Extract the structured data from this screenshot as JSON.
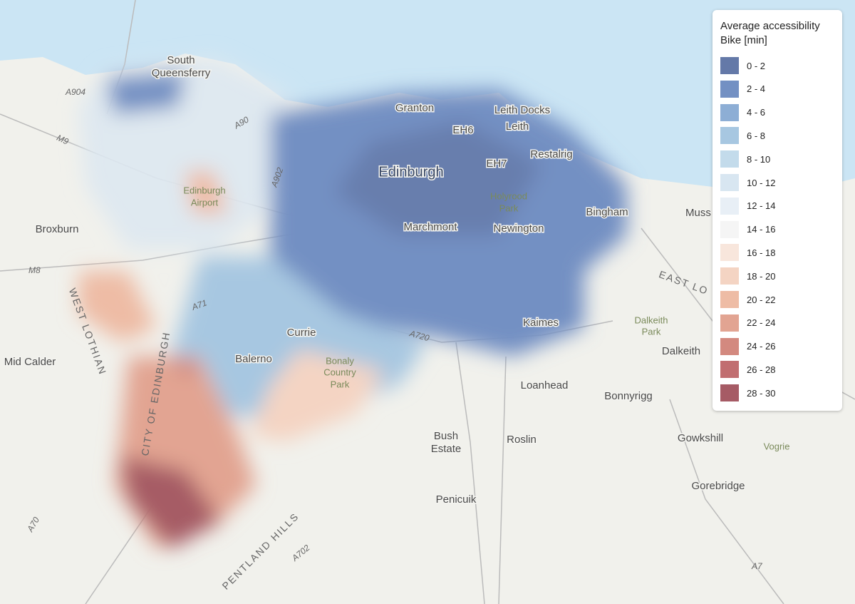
{
  "legend": {
    "title": [
      "Average accessibility",
      "Bike [min]"
    ],
    "items": [
      {
        "label": "0 - 2",
        "color": "#6479a8"
      },
      {
        "label": "2 - 4",
        "color": "#7390c3"
      },
      {
        "label": "4 - 6",
        "color": "#8daed5"
      },
      {
        "label": "6 - 8",
        "color": "#a7c7e1"
      },
      {
        "label": "8 - 10",
        "color": "#c3dbeb"
      },
      {
        "label": "10 - 12",
        "color": "#d8e6f1"
      },
      {
        "label": "12 - 14",
        "color": "#e8eff6"
      },
      {
        "label": "14 - 16",
        "color": "#f5f5f5"
      },
      {
        "label": "16 - 18",
        "color": "#f8e6dc"
      },
      {
        "label": "18 - 20",
        "color": "#f4d4c3"
      },
      {
        "label": "20 - 22",
        "color": "#eebca5"
      },
      {
        "label": "22 - 24",
        "color": "#e2a492"
      },
      {
        "label": "24 - 26",
        "color": "#d3897f"
      },
      {
        "label": "26 - 28",
        "color": "#c16e70"
      },
      {
        "label": "28 - 30",
        "color": "#a65b65"
      }
    ]
  },
  "places": [
    "South",
    "Queensferry",
    "A904",
    "M9",
    "A90",
    "Granton",
    "Leith Docks",
    "Leith",
    "EH6",
    "EH7",
    "Restalrig",
    "Edinburgh",
    "Holyrood",
    "Park",
    "Bingham",
    "Muss",
    "Broxburn",
    "Edinburgh",
    "Airport",
    "M8",
    "Marchmont",
    "Newington",
    "WEST LOTHIAN",
    "A71",
    "EAST LO",
    "Dalkeith",
    "Park",
    "Dalkeith",
    "Currie",
    "A720",
    "Kaimes",
    "Mid Calder",
    "Balerno",
    "Bonaly",
    "Country",
    "Park",
    "Loanhead",
    "Bonnyrigg",
    "CITY OF EDINBURGH",
    "Bush",
    "Estate",
    "Roslin",
    "Gowkshill",
    "Vogrie",
    "Penicuik",
    "Gorebridge",
    "PENTLAND HILLS",
    "A702",
    "A70",
    "A7",
    "A902"
  ]
}
